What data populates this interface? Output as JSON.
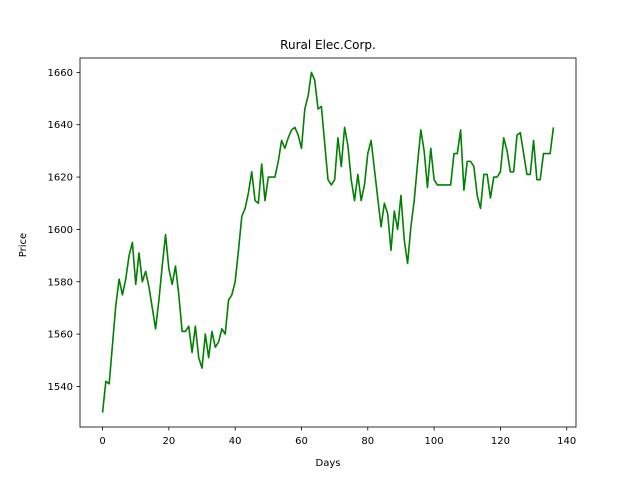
{
  "chart_data": {
    "type": "line",
    "title": "Rural Elec.Corp.",
    "xlabel": "Days",
    "ylabel": "Price",
    "xlim": [
      -6.8,
      142.8
    ],
    "ylim": [
      1524.5,
      1665.5
    ],
    "xticks": [
      0,
      20,
      40,
      60,
      80,
      100,
      120,
      140
    ],
    "yticks": [
      1540,
      1560,
      1580,
      1600,
      1620,
      1640,
      1660
    ],
    "grid": false,
    "legend": "none",
    "series": [
      {
        "color": "#008000",
        "values": [
          1530,
          1542,
          1541,
          1556,
          1571,
          1581,
          1575,
          1581,
          1590,
          1595,
          1579,
          1591,
          1580,
          1584,
          1578,
          1570,
          1562,
          1573,
          1586,
          1598,
          1585,
          1579,
          1586,
          1575,
          1561,
          1561,
          1563,
          1553,
          1563,
          1551,
          1547,
          1560,
          1551,
          1561,
          1555,
          1557,
          1562,
          1560,
          1573,
          1575,
          1580,
          1592,
          1605,
          1608,
          1614,
          1622,
          1611,
          1610,
          1625,
          1611,
          1620,
          1620,
          1620,
          1626,
          1634,
          1631,
          1635,
          1638,
          1639,
          1636,
          1631,
          1646,
          1651,
          1660,
          1657,
          1646,
          1647,
          1633,
          1619,
          1617,
          1619,
          1635,
          1624,
          1639,
          1632,
          1619,
          1611,
          1621,
          1611,
          1617,
          1629,
          1634,
          1623,
          1612,
          1601,
          1610,
          1606,
          1592,
          1607,
          1600,
          1613,
          1596,
          1587,
          1601,
          1611,
          1625,
          1638,
          1630,
          1616,
          1631,
          1619,
          1617,
          1617,
          1617,
          1617,
          1617,
          1629,
          1629,
          1638,
          1615,
          1626,
          1626,
          1624,
          1613,
          1608,
          1621,
          1621,
          1612,
          1620,
          1620,
          1622,
          1635,
          1630,
          1622,
          1622,
          1636,
          1637,
          1629,
          1621,
          1621,
          1634,
          1619,
          1619,
          1629,
          1629,
          1629,
          1639
        ]
      }
    ]
  }
}
